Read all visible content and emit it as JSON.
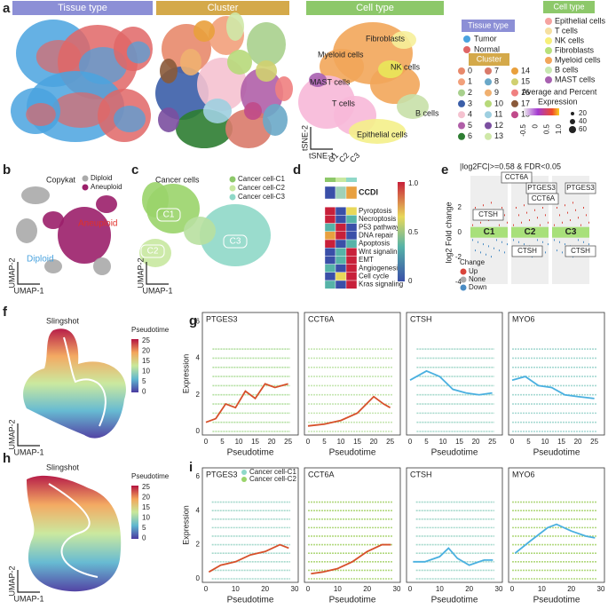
{
  "panels": {
    "a": {
      "letter": "a",
      "tissue_title": "Tissue type",
      "cluster_title": "Cluster",
      "celltype_title": "Cell type",
      "cell_labels": [
        "Fibroblasts",
        "Myeloid cells",
        "NK cells",
        "MAST cells",
        "T cells",
        "B cells",
        "Epithelial cells"
      ],
      "axis_y": "tSNE-2",
      "axis_x": "tSNE-1"
    },
    "legend": {
      "tissue_title": "Tissue type",
      "tissue": [
        "Tumor",
        "Normal"
      ],
      "cluster_title": "Cluster",
      "clusters": [
        "0",
        "1",
        "2",
        "3",
        "4",
        "5",
        "6",
        "7",
        "8",
        "9",
        "10",
        "11",
        "12",
        "13",
        "14",
        "15",
        "16",
        "17",
        "18"
      ],
      "celltype_title": "Cell type",
      "celltypes": [
        "Epithelial cells",
        "T cells",
        "NK cells",
        "Fibroblasts",
        "Myeloid cells",
        "B cells",
        "MAST cells"
      ],
      "expression_title": [
        "Average and Percent",
        "Expression"
      ],
      "colorbar_ticks": [
        "-0.5",
        "0",
        "0.5",
        "1.0"
      ],
      "size_ticks": [
        "20",
        "40",
        "60"
      ]
    },
    "b": {
      "letter": "b",
      "title": "Copykat",
      "legend": [
        "Diploid",
        "Aneuploid"
      ],
      "labels": [
        "Aneuploid",
        "Diploid"
      ],
      "axis_y": "UMAP-2",
      "axis_x": "UMAP-1"
    },
    "c": {
      "letter": "c",
      "title": "Cancer cells",
      "legend": [
        "Cancer cell-C1",
        "Cancer cell-C2",
        "Cancer cell-C3"
      ],
      "labels": [
        "C1",
        "C3",
        "C2"
      ],
      "axis_y": "UMAP-2",
      "axis_x": "UMAP-1"
    },
    "d": {
      "letter": "d",
      "columns": [
        "C1",
        "C2",
        "C3"
      ],
      "rows": [
        "CCDI",
        "Pyroptosis",
        "Necroptosis",
        "P53 pathway",
        "DNA repair",
        "Apoptosis",
        "Wnt signaling",
        "EMT",
        "Angiogenesis",
        "Cell cycle",
        "Kras signaling"
      ],
      "colorbar_ticks": [
        "1.0",
        "0.5",
        "0"
      ]
    },
    "e": {
      "letter": "e",
      "title": "|log2FC|>=0.58 & FDR<0.05",
      "axis_y": "log2 Fold change",
      "yticks": [
        "2",
        "0",
        "-2",
        "-4"
      ],
      "clusters": [
        "C1",
        "C2",
        "C3"
      ],
      "genes": [
        "CTSH",
        "CCT6A",
        "PTGES3",
        "CCT6A",
        "PTGES3",
        "CTSH",
        "CTSH"
      ],
      "legend_title": "Change",
      "legend": [
        "Up",
        "None",
        "Down"
      ]
    },
    "f": {
      "letter": "f",
      "title": "Slingshot",
      "legend_title": "Pseudotime",
      "legend_ticks": [
        "25",
        "20",
        "15",
        "10",
        "5",
        "0"
      ],
      "axis_y": "UMAP-2",
      "axis_x": "UMAP-1"
    },
    "g": {
      "letter": "g",
      "genes": [
        "PTGES3",
        "CCT6A",
        "CTSH",
        "MYO6"
      ],
      "yticks": [
        "0",
        "2",
        "4",
        "6"
      ],
      "xticks": [
        "0",
        "5",
        "10",
        "15",
        "20",
        "25"
      ],
      "axis_x": "Pseudotime",
      "axis_y": "Expression"
    },
    "h": {
      "letter": "h",
      "title": "Slingshot",
      "legend_title": "Pseudotime",
      "legend_ticks": [
        "25",
        "20",
        "15",
        "10",
        "5",
        "0"
      ],
      "axis_y": "UMAP-2",
      "axis_x": "UMAP-1"
    },
    "i": {
      "letter": "i",
      "genes": [
        "PTGES3",
        "CCT6A",
        "CTSH",
        "MYO6"
      ],
      "legend": [
        "Cancer cell-C1",
        "Cancer cell-C2"
      ],
      "yticks": [
        "0",
        "2",
        "4",
        "6"
      ],
      "xticks": [
        "0",
        "10",
        "20",
        "30"
      ],
      "axis_x": "Pseudotime",
      "axis_y": "Expression"
    }
  }
}
